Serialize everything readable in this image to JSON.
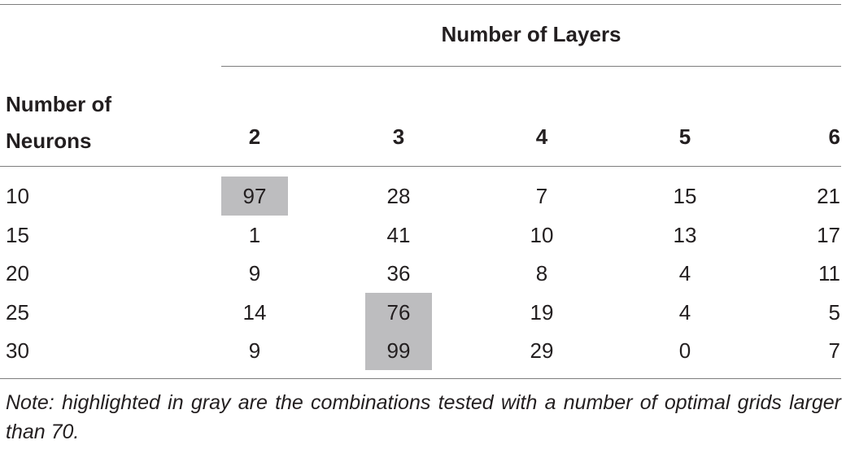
{
  "table": {
    "span_header": "Number of Layers",
    "row_header_label": "Number of Neurons",
    "columns": [
      "2",
      "3",
      "4",
      "5",
      "6"
    ],
    "rows": [
      {
        "label": "10",
        "values": [
          "97",
          "28",
          "7",
          "15",
          "21"
        ],
        "highlight": [
          true,
          false,
          false,
          false,
          false
        ]
      },
      {
        "label": "15",
        "values": [
          "1",
          "41",
          "10",
          "13",
          "17"
        ],
        "highlight": [
          false,
          false,
          false,
          false,
          false
        ]
      },
      {
        "label": "20",
        "values": [
          "9",
          "36",
          "8",
          "4",
          "11"
        ],
        "highlight": [
          false,
          false,
          false,
          false,
          false
        ]
      },
      {
        "label": "25",
        "values": [
          "14",
          "76",
          "19",
          "4",
          "5"
        ],
        "highlight": [
          false,
          true,
          false,
          false,
          false
        ]
      },
      {
        "label": "30",
        "values": [
          "9",
          "99",
          "29",
          "0",
          "7"
        ],
        "highlight": [
          false,
          true,
          false,
          false,
          false
        ]
      }
    ],
    "highlight_color": "#bdbdbf",
    "note": "Note: highlighted in gray are the combinations tested with a number of optimal grids larger than 70."
  }
}
